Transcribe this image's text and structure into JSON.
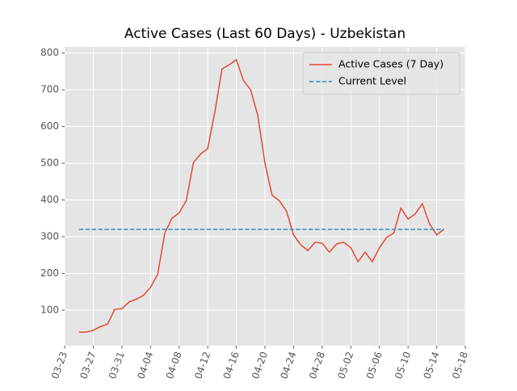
{
  "chart_data": {
    "type": "line",
    "title": "Active Cases (Last 60 Days) - Uzbekistan",
    "x": [
      "03-25",
      "03-26",
      "03-27",
      "03-28",
      "03-29",
      "03-30",
      "03-31",
      "04-01",
      "04-02",
      "04-03",
      "04-04",
      "04-05",
      "04-06",
      "04-07",
      "04-08",
      "04-09",
      "04-10",
      "04-11",
      "04-12",
      "04-13",
      "04-14",
      "04-15",
      "04-16",
      "04-17",
      "04-18",
      "04-19",
      "04-20",
      "04-21",
      "04-22",
      "04-23",
      "04-24",
      "04-25",
      "04-26",
      "04-27",
      "04-28",
      "04-29",
      "04-30",
      "05-01",
      "05-02",
      "05-03",
      "05-04",
      "05-05",
      "05-06",
      "05-07",
      "05-08",
      "05-09",
      "05-10",
      "05-11",
      "05-12",
      "05-13",
      "05-14",
      "05-15"
    ],
    "series": [
      {
        "name": "Active Cases (7 Day)",
        "color": "#e24a33",
        "values": [
          40,
          40,
          45,
          55,
          62,
          102,
          104,
          122,
          130,
          140,
          162,
          197,
          310,
          350,
          365,
          398,
          502,
          525,
          540,
          640,
          757,
          768,
          782,
          725,
          700,
          630,
          500,
          413,
          398,
          370,
          305,
          278,
          262,
          285,
          282,
          258,
          280,
          285,
          270,
          232,
          258,
          232,
          270,
          298,
          310,
          378,
          348,
          362,
          390,
          335,
          305,
          320
        ]
      }
    ],
    "hlines": [
      {
        "name": "Current Level",
        "color": "#348abd",
        "value": 320,
        "style": "dashed"
      }
    ],
    "xlim": [
      "03-23",
      "05-18"
    ],
    "xticks": [
      "03-23",
      "03-27",
      "03-31",
      "04-04",
      "04-08",
      "04-12",
      "04-16",
      "04-20",
      "04-24",
      "04-28",
      "05-02",
      "05-06",
      "05-10",
      "05-14",
      "05-18"
    ],
    "ylim": [
      3,
      817
    ],
    "yticks": [
      100,
      200,
      300,
      400,
      500,
      600,
      700,
      800
    ],
    "grid": true,
    "legend": "upper right"
  }
}
